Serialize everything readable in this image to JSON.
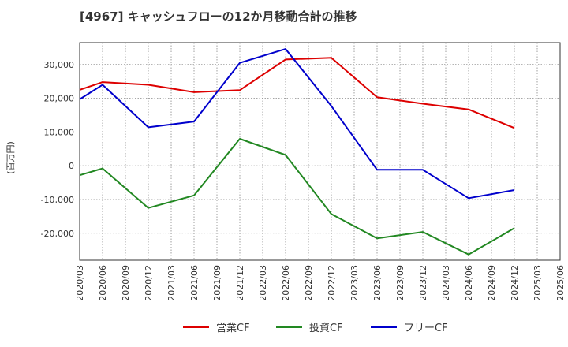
{
  "chart_data": {
    "type": "line",
    "title": "[4967]  キャッシュフローの12か月移動合計の推移",
    "ylabel": "(百万円)",
    "xlabel": "",
    "ylim": [
      -28000,
      36500
    ],
    "yticks": [
      -20000,
      -10000,
      0,
      10000,
      20000,
      30000
    ],
    "ytick_labels": [
      "-20,000",
      "-10,000",
      "0",
      "10,000",
      "20,000",
      "30,000"
    ],
    "categories": [
      "2020/03",
      "2020/06",
      "2020/09",
      "2020/12",
      "2021/03",
      "2021/06",
      "2021/09",
      "2021/12",
      "2022/03",
      "2022/06",
      "2022/09",
      "2022/12",
      "2023/03",
      "2023/06",
      "2023/09",
      "2023/12",
      "2024/03",
      "2024/06",
      "2024/09",
      "2024/12",
      "2025/03",
      "2025/06"
    ],
    "grid": true,
    "legend_position": "bottom",
    "series": [
      {
        "name": "営業CF",
        "color": "#dd0000",
        "points": [
          [
            0,
            22500
          ],
          [
            1,
            24800
          ],
          [
            3,
            24000
          ],
          [
            5,
            21800
          ],
          [
            7,
            22400
          ],
          [
            9,
            31500
          ],
          [
            11,
            32000
          ],
          [
            13,
            20300
          ],
          [
            15,
            18400
          ],
          [
            17,
            16700
          ],
          [
            19,
            11200
          ]
        ]
      },
      {
        "name": "投資CF",
        "color": "#228822",
        "points": [
          [
            0,
            -2800
          ],
          [
            1,
            -800
          ],
          [
            3,
            -12500
          ],
          [
            5,
            -8800
          ],
          [
            7,
            8000
          ],
          [
            9,
            3200
          ],
          [
            11,
            -14300
          ],
          [
            13,
            -21500
          ],
          [
            15,
            -19600
          ],
          [
            17,
            -26300
          ],
          [
            19,
            -18500
          ]
        ]
      },
      {
        "name": "フリーCF",
        "color": "#0000cc",
        "points": [
          [
            0,
            19700
          ],
          [
            1,
            24000
          ],
          [
            3,
            11400
          ],
          [
            5,
            13100
          ],
          [
            7,
            30500
          ],
          [
            9,
            34600
          ],
          [
            11,
            17700
          ],
          [
            13,
            -1200
          ],
          [
            15,
            -1200
          ],
          [
            17,
            -9600
          ],
          [
            19,
            -7200
          ]
        ]
      }
    ]
  }
}
